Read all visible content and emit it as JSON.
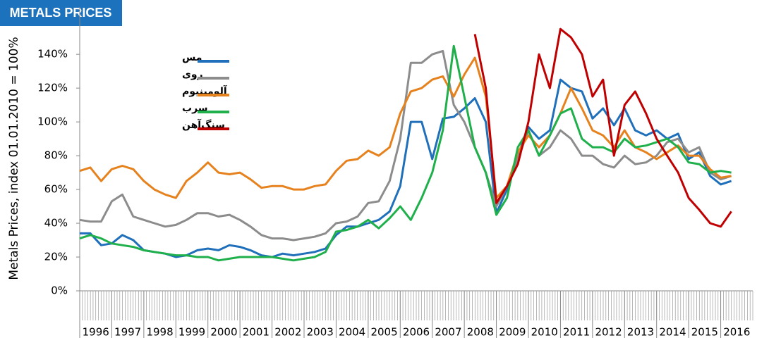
{
  "chart_data": {
    "type": "line",
    "title": "METALS PRICES",
    "y_label": "Metals Prices, index 01.01.2010 = 100%",
    "x": [
      1996,
      1996.33,
      1996.67,
      1997,
      1997.33,
      1997.67,
      1998,
      1998.33,
      1998.67,
      1999,
      1999.33,
      1999.67,
      2000,
      2000.33,
      2000.67,
      2001,
      2001.33,
      2001.67,
      2002,
      2002.33,
      2002.67,
      2003,
      2003.33,
      2003.67,
      2004,
      2004.33,
      2004.67,
      2005,
      2005.33,
      2005.67,
      2006,
      2006.33,
      2006.67,
      2007,
      2007.33,
      2007.67,
      2008,
      2008.33,
      2008.67,
      2009,
      2009.33,
      2009.67,
      2010,
      2010.33,
      2010.67,
      2011,
      2011.33,
      2011.67,
      2012,
      2012.33,
      2012.67,
      2013,
      2013.33,
      2013.67,
      2014,
      2014.33,
      2014.67,
      2015,
      2015.33,
      2015.67,
      2016,
      2016.33
    ],
    "series": [
      {
        "name": "مس",
        "color": "#1f6fba",
        "values": [
          34,
          34,
          27,
          28,
          33,
          30,
          24,
          23,
          22,
          20,
          21,
          24,
          25,
          24,
          27,
          26,
          24,
          21,
          20,
          22,
          21,
          22,
          23,
          25,
          33,
          38,
          38,
          40,
          42,
          47,
          62,
          100,
          100,
          78,
          102,
          103,
          108,
          114,
          100,
          46,
          60,
          80,
          97,
          90,
          95,
          125,
          120,
          118,
          102,
          108,
          98,
          108,
          95,
          92,
          95,
          90,
          93,
          78,
          82,
          68,
          63,
          65
        ]
      },
      {
        "name": "روی",
        "color": "#8c8c8c",
        "values": [
          42,
          41,
          41,
          53,
          57,
          44,
          42,
          40,
          38,
          39,
          42,
          46,
          46,
          44,
          45,
          42,
          38,
          33,
          31,
          31,
          30,
          31,
          32,
          34,
          40,
          41,
          44,
          52,
          53,
          65,
          90,
          135,
          135,
          140,
          142,
          110,
          100,
          85,
          70,
          50,
          62,
          78,
          95,
          80,
          85,
          95,
          90,
          80,
          80,
          75,
          73,
          80,
          75,
          76,
          80,
          88,
          90,
          82,
          85,
          70,
          66,
          68
        ]
      },
      {
        "name": "آلومینیوم",
        "color": "#e6821e",
        "values": [
          71,
          73,
          65,
          72,
          74,
          72,
          65,
          60,
          57,
          55,
          65,
          70,
          76,
          70,
          69,
          70,
          66,
          61,
          62,
          62,
          60,
          60,
          62,
          63,
          71,
          77,
          78,
          83,
          80,
          85,
          105,
          118,
          120,
          125,
          127,
          115,
          128,
          138,
          115,
          55,
          62,
          82,
          92,
          85,
          92,
          105,
          120,
          108,
          95,
          92,
          85,
          95,
          85,
          82,
          78,
          82,
          86,
          80,
          80,
          72,
          67,
          68
        ]
      },
      {
        "name": "سرب",
        "color": "#1fb04b",
        "values": [
          31,
          33,
          31,
          28,
          27,
          26,
          24,
          23,
          22,
          21,
          21,
          20,
          20,
          18,
          19,
          20,
          20,
          20,
          20,
          19,
          18,
          19,
          20,
          23,
          35,
          36,
          38,
          42,
          37,
          43,
          50,
          42,
          55,
          70,
          95,
          145,
          115,
          85,
          70,
          45,
          55,
          85,
          95,
          80,
          92,
          105,
          108,
          90,
          85,
          85,
          82,
          90,
          85,
          86,
          88,
          90,
          85,
          76,
          75,
          70,
          71,
          70
        ]
      },
      {
        "name": "سنگ‌آهن",
        "color": "#c00000",
        "values": [
          null,
          null,
          null,
          null,
          null,
          null,
          null,
          null,
          null,
          null,
          null,
          null,
          null,
          null,
          null,
          null,
          null,
          null,
          null,
          null,
          null,
          null,
          null,
          null,
          null,
          null,
          null,
          null,
          null,
          null,
          null,
          null,
          null,
          null,
          null,
          null,
          null,
          152,
          120,
          52,
          62,
          75,
          100,
          140,
          120,
          155,
          150,
          140,
          115,
          125,
          80,
          110,
          118,
          105,
          90,
          80,
          70,
          55,
          48,
          40,
          38,
          47
        ]
      }
    ],
    "xlim": [
      1996,
      2017
    ],
    "xticks": [
      1996,
      1997,
      1998,
      1999,
      2000,
      2001,
      2002,
      2003,
      2004,
      2005,
      2006,
      2007,
      2008,
      2009,
      2010,
      2011,
      2012,
      2013,
      2014,
      2015,
      2016
    ],
    "ylim": [
      0,
      168
    ],
    "yticks": [
      {
        "value": 0,
        "label": "0%"
      },
      {
        "value": 20,
        "label": "20%"
      },
      {
        "value": 40,
        "label": "40%"
      },
      {
        "value": 60,
        "label": "60%"
      },
      {
        "value": 80,
        "label": "80%"
      },
      {
        "value": 100,
        "label": "100%"
      },
      {
        "value": 120,
        "label": "120%"
      },
      {
        "value": 140,
        "label": "140%"
      }
    ]
  }
}
